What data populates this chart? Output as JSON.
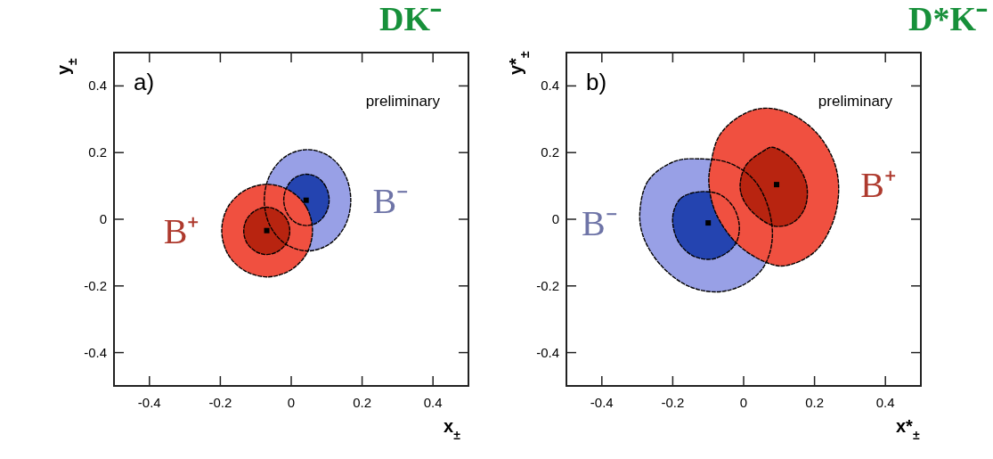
{
  "chart_data": [
    {
      "type": "area",
      "title": "DK⁻",
      "xlabel": "x$_{±}$",
      "ylabel": "y$_{±}$",
      "annotations": [
        "a)",
        "preliminary"
      ],
      "xlim": [
        -0.5,
        0.5
      ],
      "ylim": [
        -0.5,
        0.5
      ],
      "xticks": [
        -0.4,
        -0.2,
        0,
        0.2,
        0.4
      ],
      "yticks": [
        -0.4,
        -0.2,
        0,
        0.2,
        0.4
      ],
      "series": [
        {
          "name": "B⁻",
          "color": "#98a0e6",
          "x": [
            0.168,
            0.152,
            0.107,
            0.046,
            -0.015,
            -0.06,
            -0.076,
            -0.06,
            -0.015,
            0.046,
            0.107,
            0.152
          ],
          "values": [
            0.057,
            0.133,
            0.189,
            0.209,
            0.189,
            0.133,
            0.057,
            -0.019,
            -0.075,
            -0.095,
            -0.075,
            -0.019
          ]
        },
        {
          "color": "#2444b0",
          "x": [
            0.107,
            0.098,
            0.075,
            0.043,
            0.011,
            -0.012,
            -0.021,
            -0.012,
            0.011,
            0.043,
            0.075,
            0.098
          ],
          "values": [
            0.058,
            0.097,
            0.125,
            0.135,
            0.125,
            0.097,
            0.058,
            0.019,
            -0.009,
            -0.019,
            -0.009,
            0.019
          ]
        },
        {
          "name": "B⁺",
          "color": "#f05040",
          "x": [
            0.06,
            0.043,
            -0.004,
            -0.068,
            -0.132,
            -0.179,
            -0.196,
            -0.179,
            -0.132,
            -0.068,
            -0.004,
            0.043
          ],
          "values": [
            -0.034,
            0.036,
            0.086,
            0.105,
            0.086,
            0.036,
            -0.034,
            -0.104,
            -0.154,
            -0.173,
            -0.154,
            -0.104
          ]
        },
        {
          "color": "#b82410",
          "x": [
            -0.004,
            -0.013,
            -0.037,
            -0.069,
            -0.101,
            -0.125,
            -0.134,
            -0.125,
            -0.101,
            -0.069,
            -0.037,
            -0.013
          ],
          "values": [
            -0.035,
            0.001,
            0.026,
            0.036,
            0.026,
            0.001,
            -0.035,
            -0.071,
            -0.096,
            -0.106,
            -0.096,
            -0.071
          ]
        },
        {
          "type": "scatter",
          "marker": "square",
          "color": "#000000",
          "x": [
            0.042,
            -0.069
          ],
          "values": [
            0.057,
            -0.034
          ]
        }
      ]
    },
    {
      "type": "area",
      "title": "D*K⁻",
      "xlabel": "x*$_{±}$",
      "ylabel": "y*$_{±}$",
      "annotations": [
        "b)",
        "preliminary"
      ],
      "xlim": [
        -0.5,
        0.5
      ],
      "ylim": [
        -0.5,
        0.5
      ],
      "xticks": [
        -0.4,
        -0.2,
        0,
        0.2,
        0.4
      ],
      "yticks": [
        -0.4,
        -0.2,
        0,
        0.2,
        0.4
      ],
      "series": [
        {
          "name": "B⁻",
          "color": "#98a0e6",
          "x": [
            -0.293,
            -0.269,
            -0.194,
            -0.119,
            -0.044,
            0.023,
            0.064,
            0.081,
            0.056,
            -0.003,
            -0.078,
            -0.161,
            -0.236,
            -0.282
          ],
          "values": [
            0.017,
            0.116,
            0.174,
            0.181,
            0.17,
            0.125,
            0.053,
            -0.055,
            -0.144,
            -0.198,
            -0.218,
            -0.198,
            -0.135,
            -0.055
          ]
        },
        {
          "color": "#2444b0",
          "x": [
            -0.2,
            -0.178,
            -0.128,
            -0.069,
            -0.028,
            -0.012,
            -0.028,
            -0.086,
            -0.144,
            -0.186
          ],
          "values": [
            0.008,
            0.062,
            0.082,
            0.075,
            0.035,
            -0.028,
            -0.082,
            -0.119,
            -0.109,
            -0.064
          ]
        },
        {
          "name": "B⁺",
          "color": "#f05040",
          "x": [
            -0.092,
            -0.069,
            -0.011,
            0.056,
            0.131,
            0.206,
            0.256,
            0.268,
            0.248,
            0.198,
            0.114,
            0.056,
            -0.019,
            -0.078,
            -0.098
          ],
          "values": [
            0.17,
            0.25,
            0.309,
            0.333,
            0.317,
            0.259,
            0.17,
            0.08,
            -0.019,
            -0.1,
            -0.14,
            -0.126,
            -0.073,
            0.017,
            0.107
          ]
        },
        {
          "color": "#b82410",
          "x": [
            -0.01,
            0.006,
            0.056,
            0.081,
            0.139,
            0.177,
            0.173,
            0.139,
            0.089,
            0.039,
            0.002
          ],
          "values": [
            0.098,
            0.161,
            0.205,
            0.216,
            0.178,
            0.107,
            0.035,
            -0.01,
            -0.021,
            0.008,
            0.053
          ]
        },
        {
          "type": "scatter",
          "marker": "square",
          "color": "#000000",
          "x": [
            -0.1,
            0.093
          ],
          "values": [
            -0.011,
            0.104
          ]
        }
      ]
    }
  ]
}
